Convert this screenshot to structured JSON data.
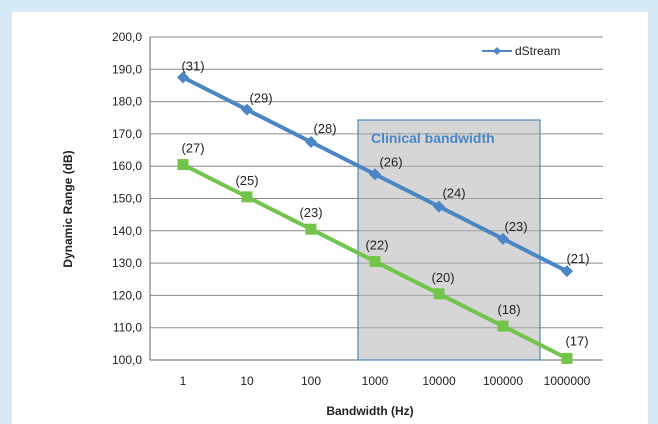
{
  "chart_data": {
    "type": "line",
    "xlabel": "Bandwidth (Hz)",
    "ylabel": "Dynamic Range (dB)",
    "categories": [
      "1",
      "10",
      "100",
      "1000",
      "10000",
      "100000",
      "1000000"
    ],
    "y_tick_labels": [
      "100,0",
      "110,0",
      "120,0",
      "130,0",
      "140,0",
      "150,0",
      "160,0",
      "170,0",
      "180,0",
      "190,0",
      "200,0"
    ],
    "ylim": [
      100,
      200
    ],
    "grid": true,
    "legend_position": "top-right",
    "series": [
      {
        "name": "dStream",
        "color": "#4a86c5",
        "marker": "diamond",
        "values": [
          187.5,
          177.5,
          167.5,
          157.5,
          147.5,
          137.5,
          127.5
        ],
        "labels": [
          "(31)",
          "(29)",
          "(28)",
          "(26)",
          "(24)",
          "(23)",
          "(21)"
        ]
      },
      {
        "color": "#72c44a",
        "marker": "square",
        "values": [
          160.5,
          150.5,
          140.5,
          130.5,
          120.5,
          110.5,
          100.5
        ],
        "labels": [
          "(27)",
          "(25)",
          "(23)",
          "(22)",
          "(20)",
          "(18)",
          "(17)"
        ]
      }
    ],
    "annotations": [
      {
        "text": "Clinical bandwidth",
        "color": "#4a86c5",
        "x_from": "1000",
        "x_to": "1000000"
      }
    ]
  }
}
